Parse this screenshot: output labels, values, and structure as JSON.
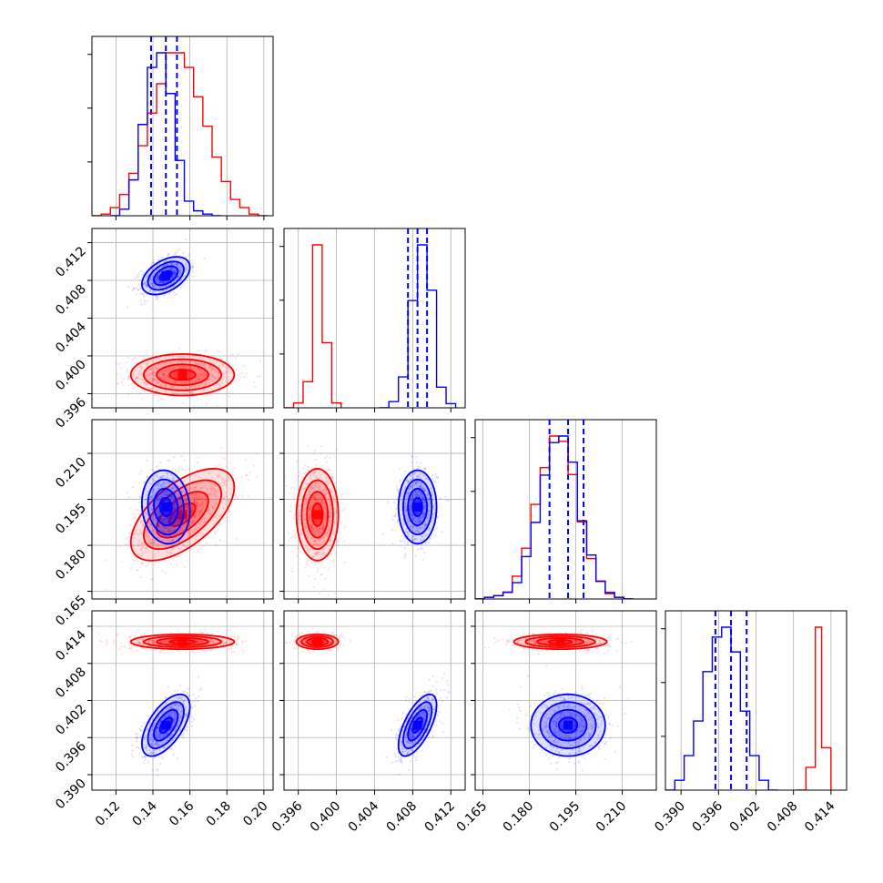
{
  "colors": {
    "model_red": "#ff0000",
    "model_blue": "#0000ff",
    "grid": "#b0b0b0"
  },
  "chart_data": {
    "type": "corner",
    "title": "",
    "grid": true,
    "dimensions": [
      {
        "index": 0,
        "range": [
          0.107,
          0.205
        ],
        "ticks": [
          0.12,
          0.14,
          0.16,
          0.18,
          0.2
        ],
        "tick_labels": [
          "0.12",
          "0.14",
          "0.16",
          "0.18",
          "0.20"
        ]
      },
      {
        "index": 1,
        "range": [
          0.3945,
          0.4135
        ],
        "ticks": [
          0.396,
          0.4,
          0.404,
          0.408,
          0.412
        ],
        "tick_labels": [
          "0.396",
          "0.400",
          "0.404",
          "0.408",
          "0.412"
        ]
      },
      {
        "index": 2,
        "range": [
          0.1625,
          0.221
        ],
        "ticks": [
          0.165,
          0.18,
          0.195,
          0.21
        ],
        "tick_labels": [
          "0.165",
          "0.180",
          "0.195",
          "0.210"
        ]
      },
      {
        "index": 3,
        "range": [
          0.3875,
          0.4165
        ],
        "ticks": [
          0.39,
          0.396,
          0.402,
          0.408,
          0.414
        ],
        "tick_labels": [
          "0.390",
          "0.396",
          "0.402",
          "0.408",
          "0.414"
        ]
      }
    ],
    "series": [
      {
        "color": "red",
        "means": [
          0.156,
          0.398,
          0.19,
          0.4115
        ],
        "sds": [
          0.014,
          0.0011,
          0.0075,
          0.0006
        ],
        "correlations": {
          "0-1": 0.0,
          "0-2": 0.6,
          "0-3": 0.0,
          "1-2": 0.0,
          "1-3": 0.0,
          "2-3": 0.0
        },
        "histograms": [
          {
            "edges": [
              0.107,
              0.112,
              0.117,
              0.122,
              0.127,
              0.132,
              0.137,
              0.142,
              0.147,
              0.152,
              0.157,
              0.162,
              0.167,
              0.172,
              0.177,
              0.182,
              0.187,
              0.192,
              0.197,
              0.202
            ],
            "counts": [
              0,
              1,
              5,
              13,
              26,
              43,
              63,
              81,
              100,
              100,
              91,
              73,
              55,
              36,
              21,
              10,
              5,
              1,
              0
            ]
          },
          {
            "edges": [
              0.3945,
              0.3955,
              0.3965,
              0.3975,
              0.3985,
              0.3995,
              0.4005
            ],
            "counts": [
              0,
              3,
              16,
              100,
              40,
              3
            ]
          },
          {
            "edges": [
              0.1625,
              0.1655,
              0.1685,
              0.1715,
              0.1745,
              0.1775,
              0.1805,
              0.1835,
              0.1865,
              0.1895,
              0.1925,
              0.1955,
              0.1985,
              0.2015,
              0.2045,
              0.2075,
              0.2105,
              0.2135
            ],
            "counts": [
              0,
              1,
              2,
              4,
              13,
              29,
              54,
              75,
              93,
              90,
              71,
              44,
              23,
              10,
              3,
              1,
              0
            ]
          },
          {
            "edges": [
              0.4085,
              0.41,
              0.4115,
              0.4125,
              0.414
            ],
            "counts": [
              0,
              14,
              100,
              26
            ]
          }
        ]
      },
      {
        "color": "blue",
        "means": [
          0.147,
          0.4085,
          0.1925,
          0.398
        ],
        "sds": [
          0.0065,
          0.001,
          0.006,
          0.0025
        ],
        "correlations": {
          "0-1": 0.45,
          "0-2": -0.1,
          "0-3": 0.6,
          "1-2": 0.0,
          "1-3": 0.65,
          "2-3": 0.0
        },
        "quantiles": [
          [
            0.139,
            0.147,
            0.153
          ],
          [
            0.4075,
            0.4085,
            0.4095
          ],
          [
            0.1865,
            0.1925,
            0.1975
          ],
          [
            0.3955,
            0.398,
            0.4005
          ]
        ],
        "histograms": [
          {
            "edges": [
              0.117,
              0.122,
              0.127,
              0.132,
              0.137,
              0.142,
              0.147,
              0.152,
              0.157,
              0.162,
              0.167,
              0.172,
              0.177
            ],
            "counts": [
              0,
              4,
              22,
              56,
              91,
              100,
              75,
              34,
              9,
              3,
              1,
              0
            ]
          },
          {
            "edges": [
              0.4045,
              0.4055,
              0.4065,
              0.4075,
              0.4085,
              0.4095,
              0.4105,
              0.4115,
              0.4125
            ],
            "counts": [
              0,
              3,
              15,
              52,
              79,
              57,
              10,
              2
            ]
          },
          {
            "edges": [
              0.1625,
              0.1655,
              0.1685,
              0.1715,
              0.1745,
              0.1775,
              0.1805,
              0.1835,
              0.1865,
              0.1895,
              0.1925,
              0.1955,
              0.1985,
              0.2015,
              0.2045,
              0.2075,
              0.2105,
              0.2135
            ],
            "counts": [
              0,
              1,
              2,
              4,
              10,
              26,
              47,
              76,
              96,
              100,
              84,
              48,
              27,
              11,
              4,
              1,
              0
            ]
          },
          {
            "edges": [
              0.3875,
              0.389,
              0.3905,
              0.392,
              0.3935,
              0.395,
              0.3965,
              0.398,
              0.3995,
              0.401,
              0.4025,
              0.404,
              0.4055
            ],
            "counts": [
              0,
              2,
              7,
              14,
              24,
              31,
              33,
              28,
              16,
              7,
              2,
              0
            ]
          }
        ]
      }
    ]
  }
}
